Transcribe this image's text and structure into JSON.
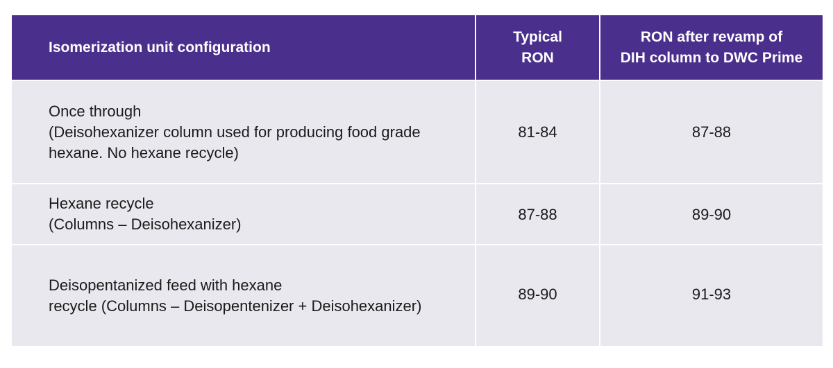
{
  "table": {
    "headers": [
      "Isomerization unit configuration",
      [
        "Typical",
        "RON"
      ],
      [
        "RON after revamp of",
        "DIH column to DWC Prime"
      ]
    ],
    "rows": [
      {
        "configuration": [
          "Once through",
          "(Deisohexanizer column used for producing food grade",
          "hexane. No hexane recycle)"
        ],
        "typical_ron": "81-84",
        "ron_after_revamp": "87-88"
      },
      {
        "configuration": [
          "Hexane recycle",
          "(Columns – Deisohexanizer)"
        ],
        "typical_ron": "87-88",
        "ron_after_revamp": "89-90"
      },
      {
        "configuration": [
          "Deisopentanized feed with hexane",
          "recycle (Columns – Deisopentenizer + Deisohexanizer)"
        ],
        "typical_ron": "89-90",
        "ron_after_revamp": "91-93"
      }
    ]
  },
  "colors": {
    "header_bg": "#4b2f8c",
    "row_bg": "#e9e8ef"
  }
}
